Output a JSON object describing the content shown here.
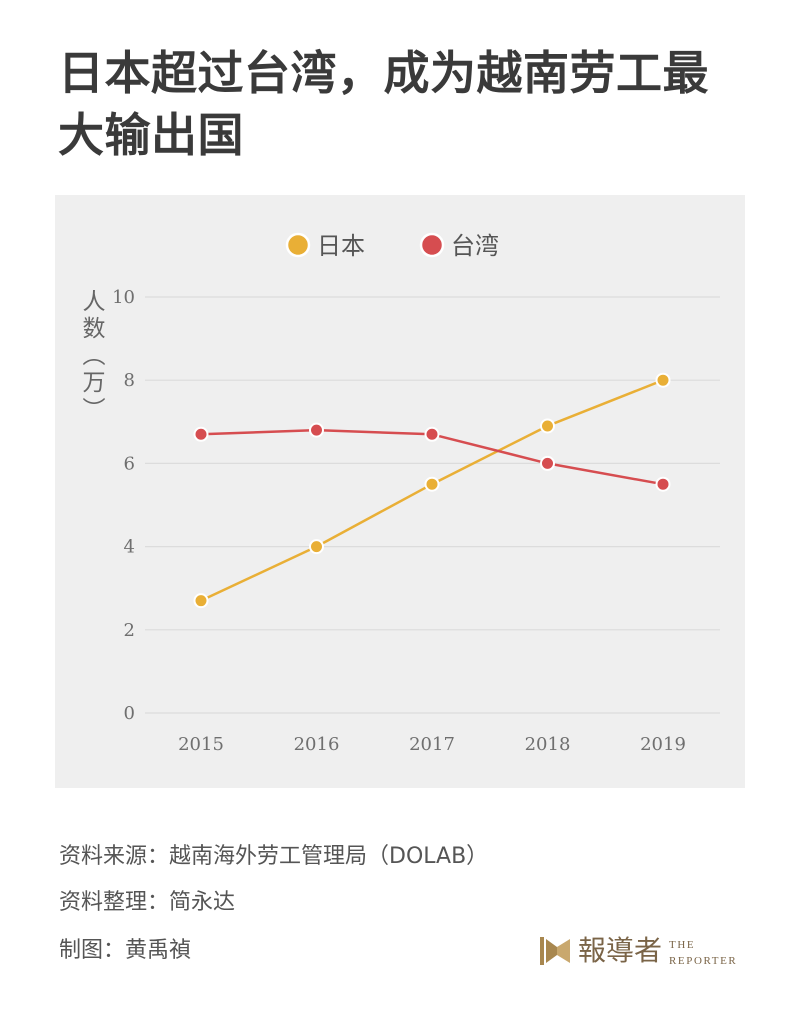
{
  "title": "日本超过台湾，成为越南劳工最大输出国",
  "chart_data": {
    "type": "line",
    "categories": [
      "2015",
      "2016",
      "2017",
      "2018",
      "2019"
    ],
    "series": [
      {
        "name": "日本",
        "color": "#E9AF36",
        "values": [
          2.7,
          4.0,
          5.5,
          6.9,
          8.0
        ]
      },
      {
        "name": "台湾",
        "color": "#D64D50",
        "values": [
          6.7,
          6.8,
          6.7,
          6.0,
          5.5
        ]
      }
    ],
    "xlabel": "",
    "ylabel": "人数（万）",
    "yticks": [
      0,
      2,
      4,
      6,
      8,
      10
    ],
    "ylim": [
      0,
      10
    ],
    "grid": true,
    "legend": "top-center"
  },
  "footer": {
    "source": "资料来源：越南海外劳工管理局（DOLAB）",
    "compiled_by": "资料整理：简永达",
    "graphic_by": "制图：黄禹禎"
  },
  "logo": {
    "name_zh": "報導者",
    "name_en_line1": "THE",
    "name_en_line2": "REPORTER",
    "icon": "reporter-logo-icon"
  },
  "colors": {
    "panel_background": "#EFEFEF",
    "title": "#3A3A3A",
    "body_text": "#555555",
    "logo": "#A8874F"
  }
}
